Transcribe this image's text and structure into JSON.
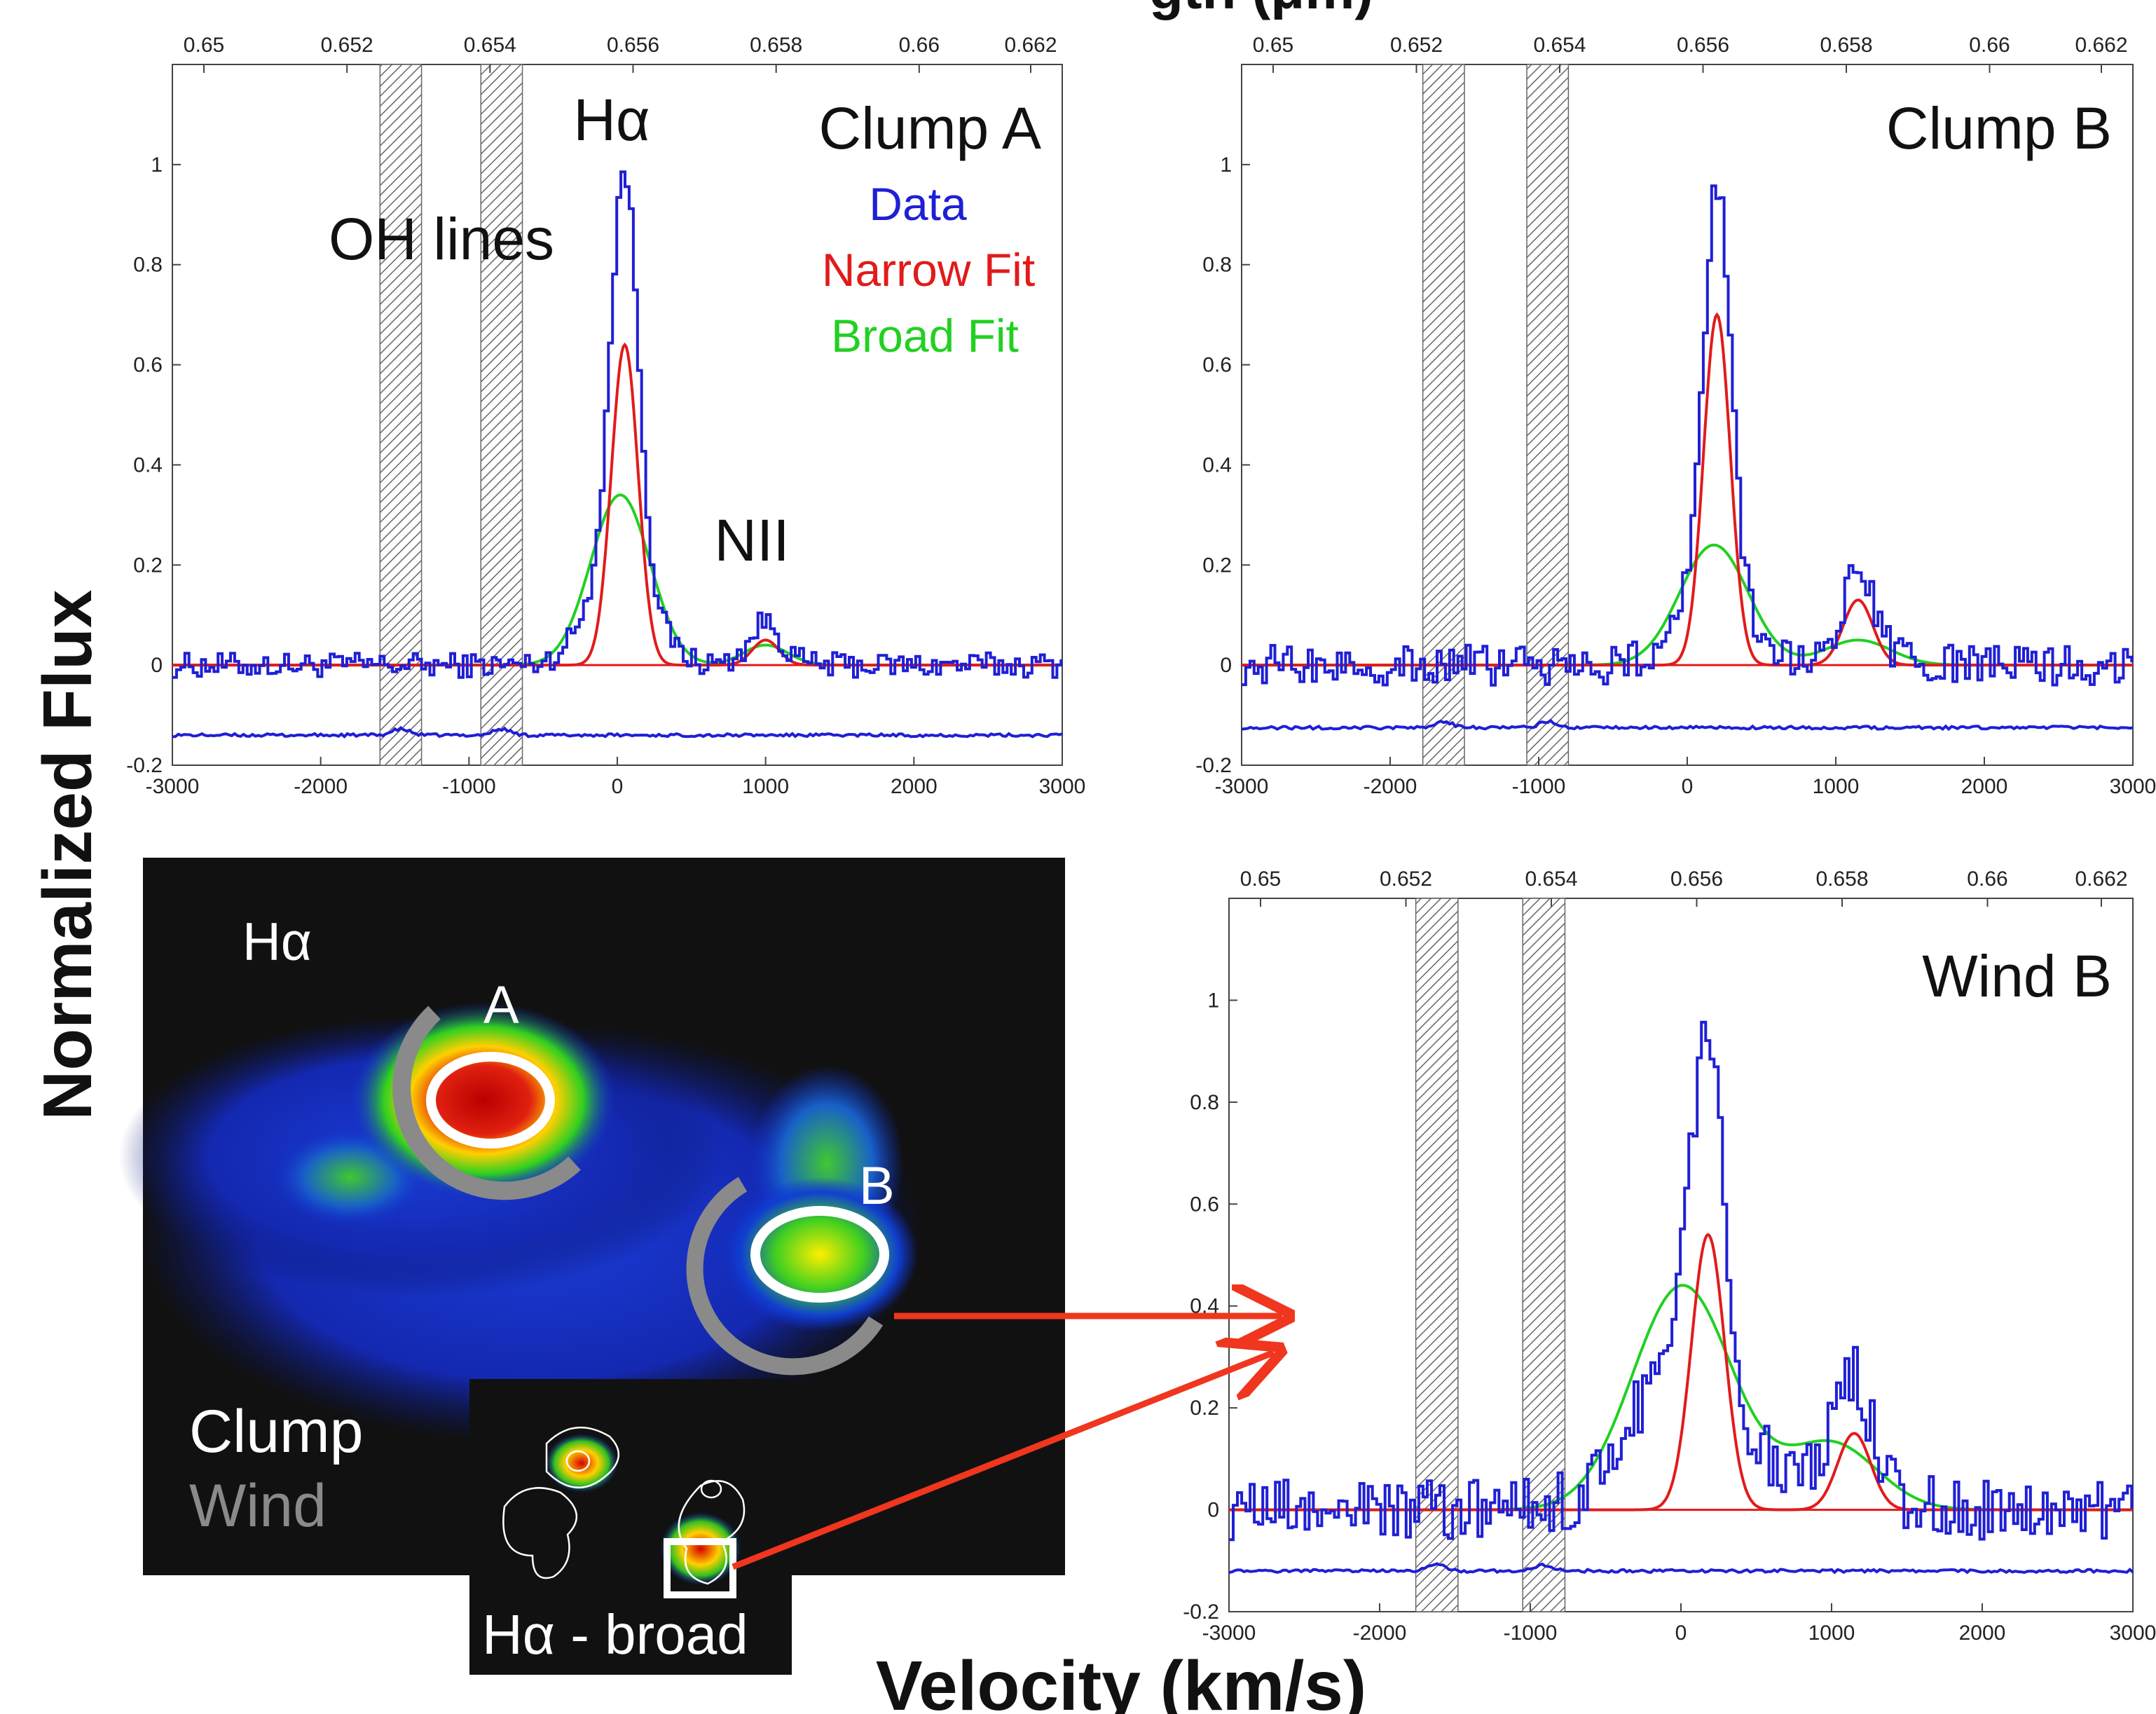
{
  "labels": {
    "y_axis": "Normalized Flux",
    "x_axis": "Velocity (km/s)",
    "top_axis_partial": "gth (μm)"
  },
  "colors": {
    "data": "#1f1fd6",
    "narrow_fit": "#e11b1b",
    "broad_fit": "#22d022",
    "hatch": "#666666",
    "arrow": "#f0361e"
  },
  "chart_data": [
    {
      "type": "line",
      "panel": "Clump A",
      "title": "Clump A",
      "legend": [
        "Data",
        "Narrow Fit",
        "Broad Fit"
      ],
      "legend_position": "top-right",
      "annotations": [
        "Hα",
        "OH lines",
        "NII"
      ],
      "xlim": [
        -3000,
        3000
      ],
      "ylim": [
        -0.2,
        1.2
      ],
      "x_ticks": [
        "-3000",
        "-2000",
        "-1000",
        "0",
        "1000",
        "2000",
        "3000"
      ],
      "y_ticks": [
        "-0.2",
        "0",
        "0.2",
        "0.4",
        "0.6",
        "0.8",
        "1"
      ],
      "top_ticks": [
        "0.65",
        "0.652",
        "0.654",
        "0.656",
        "0.658",
        "0.66",
        "0.662"
      ],
      "oh_bands": [
        [
          -1600,
          -1320
        ],
        [
          -920,
          -640
        ]
      ],
      "series": [
        {
          "name": "Narrow Fit",
          "amp": 0.64,
          "center": 50,
          "sigma": 90,
          "amp2": 0.05,
          "center2": 1000,
          "sigma2": 90
        },
        {
          "name": "Broad Fit",
          "amp": 0.34,
          "center": 20,
          "sigma": 200,
          "amp2": 0.04,
          "center2": 1000,
          "sigma2": 150
        }
      ],
      "data_peak": 0.99,
      "noise": 0.025,
      "error_level": -0.14
    },
    {
      "type": "line",
      "panel": "Clump B",
      "title": "Clump B",
      "legend": [],
      "xlim": [
        -3000,
        3000
      ],
      "ylim": [
        -0.2,
        1.2
      ],
      "x_ticks": [
        "-3000",
        "-2000",
        "-1000",
        "0",
        "1000",
        "2000",
        "3000"
      ],
      "y_ticks": [
        "-0.2",
        "0",
        "0.2",
        "0.4",
        "0.6",
        "0.8",
        "1"
      ],
      "top_ticks": [
        "0.65",
        "0.652",
        "0.654",
        "0.656",
        "0.658",
        "0.66",
        "0.662"
      ],
      "oh_bands": [
        [
          -1780,
          -1500
        ],
        [
          -1080,
          -800
        ]
      ],
      "series": [
        {
          "name": "Narrow Fit",
          "amp": 0.7,
          "center": 200,
          "sigma": 90,
          "amp2": 0.13,
          "center2": 1150,
          "sigma2": 100
        },
        {
          "name": "Broad Fit",
          "amp": 0.24,
          "center": 180,
          "sigma": 230,
          "amp2": 0.05,
          "center2": 1150,
          "sigma2": 220
        }
      ],
      "data_peak": 0.96,
      "noise": 0.04,
      "error_level": -0.125
    },
    {
      "type": "line",
      "panel": "Wind B",
      "title": "Wind B",
      "legend": [],
      "xlim": [
        -3000,
        3000
      ],
      "ylim": [
        -0.2,
        1.2
      ],
      "x_ticks": [
        "-3000",
        "-2000",
        "-1000",
        "0",
        "1000",
        "2000",
        "3000"
      ],
      "y_ticks": [
        "-0.2",
        "0",
        "0.2",
        "0.4",
        "0.6",
        "0.8",
        "1"
      ],
      "top_ticks": [
        "0.65",
        "0.652",
        "0.654",
        "0.656",
        "0.658",
        "0.66",
        "0.662"
      ],
      "oh_bands": [
        [
          -1760,
          -1480
        ],
        [
          -1050,
          -770
        ]
      ],
      "series": [
        {
          "name": "Narrow Fit",
          "amp": 0.54,
          "center": 180,
          "sigma": 110,
          "amp2": 0.15,
          "center2": 1150,
          "sigma2": 110
        },
        {
          "name": "Broad Fit",
          "amp": 0.44,
          "center": 10,
          "sigma": 330,
          "amp2": 0.13,
          "center2": 1000,
          "sigma2": 300
        }
      ],
      "data_peak": 0.94,
      "noise": 0.06,
      "error_level": -0.12
    }
  ],
  "image_panel": {
    "title": "Hα",
    "label_a": "A",
    "label_b": "B",
    "legend_clump": "Clump",
    "legend_wind": "Wind",
    "inset_label": "Hα - broad"
  }
}
